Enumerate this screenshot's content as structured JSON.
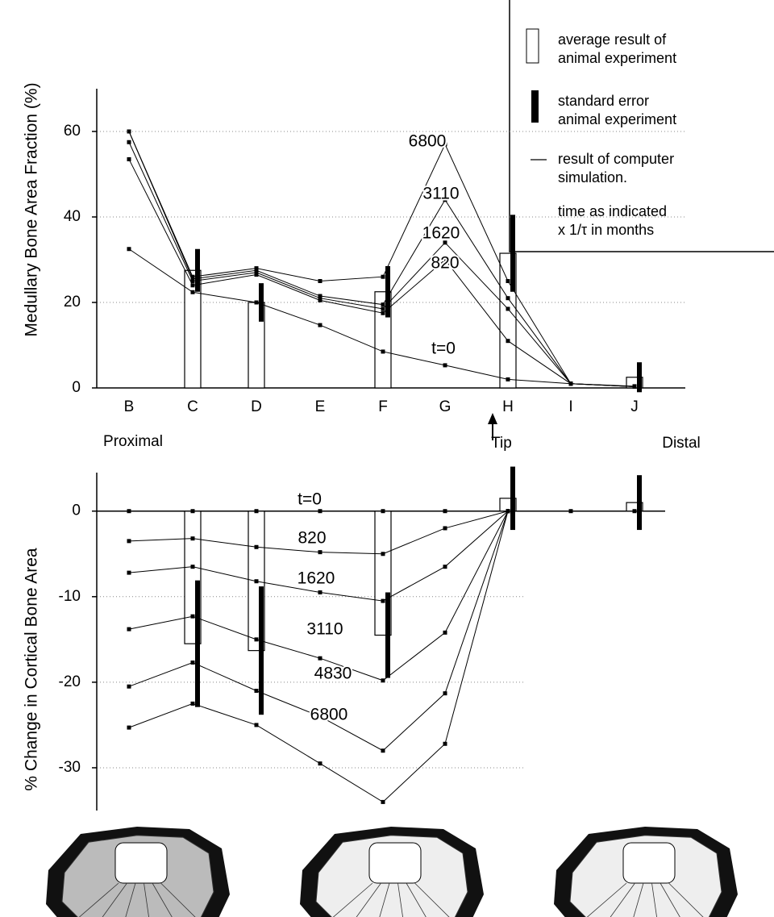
{
  "chart_data": [
    {
      "type": "line",
      "y_label": "Medullary Bone Area Fraction (%)",
      "categories": [
        "B",
        "C",
        "D",
        "E",
        "F",
        "G",
        "H",
        "I",
        "J"
      ],
      "annotations": [
        "Proximal",
        "Tip",
        "Distal"
      ],
      "ylim": [
        0,
        70
      ],
      "yticks": [
        0,
        20,
        40,
        60
      ],
      "grid": true,
      "color": "#000000",
      "series": [
        {
          "name": "6800",
          "values": [
            60,
            26,
            28,
            25,
            26,
            57,
            25,
            1,
            0.3
          ]
        },
        {
          "name": "3110",
          "values": [
            60,
            25.5,
            27.5,
            21.5,
            19.5,
            44,
            21,
            1,
            0.3
          ]
        },
        {
          "name": "1620",
          "values": [
            57.5,
            25,
            27,
            21,
            18.5,
            34,
            18.5,
            1,
            0.3
          ]
        },
        {
          "name": "820",
          "values": [
            53.5,
            24,
            26.5,
            20.5,
            17.5,
            30,
            11,
            1,
            0.3
          ]
        },
        {
          "name": "t=0",
          "values": [
            32.5,
            22.4,
            20,
            14.7,
            8.5,
            5.3,
            2,
            1,
            0.4
          ]
        }
      ],
      "bars": {
        "values": [
          null,
          27.5,
          20,
          null,
          22.5,
          null,
          31.5,
          null,
          2.5
        ],
        "errors": [
          null,
          5,
          4.5,
          null,
          6,
          null,
          9,
          null,
          3.5
        ]
      },
      "legend": [
        [
          "average result of",
          "animal experiment"
        ],
        [
          "standard error",
          "animal experiment"
        ],
        [
          "result of computer",
          "simulation."
        ],
        [
          "time as indicated",
          "x 1/τ  in months"
        ]
      ]
    },
    {
      "type": "line",
      "y_label": "% Change in Cortical Bone Area",
      "ylim": [
        -35,
        4.5
      ],
      "yticks": [
        0,
        -10,
        -20,
        -30
      ],
      "grid": true,
      "color": "#000000",
      "series": [
        {
          "name": "t=0",
          "values": [
            0,
            0,
            0,
            0,
            0,
            0,
            0,
            0,
            0
          ]
        },
        {
          "name": "820",
          "values": [
            -3.5,
            -3.2,
            -4.2,
            -4.8,
            -5,
            -2,
            0,
            null,
            null
          ]
        },
        {
          "name": "1620",
          "values": [
            -7.2,
            -6.5,
            -8.2,
            -9.5,
            -10.5,
            -6.5,
            0,
            null,
            null
          ]
        },
        {
          "name": "3110",
          "values": [
            -13.8,
            -12.3,
            -15,
            -17.2,
            -19.8,
            -14.2,
            0,
            null,
            null
          ]
        },
        {
          "name": "4830",
          "values": [
            -20.5,
            -17.7,
            -21,
            -24,
            -28,
            -21.3,
            0,
            null,
            null
          ]
        },
        {
          "name": "6800",
          "values": [
            -25.3,
            -22.5,
            -25,
            -29.5,
            -34,
            -27.2,
            0,
            null,
            null
          ]
        }
      ],
      "bars": {
        "values": [
          null,
          -15.5,
          -16.3,
          null,
          -14.5,
          null,
          1.5,
          null,
          1
        ],
        "errors": [
          null,
          7.4,
          7.5,
          null,
          5,
          null,
          3.7,
          null,
          3.2
        ]
      }
    }
  ]
}
